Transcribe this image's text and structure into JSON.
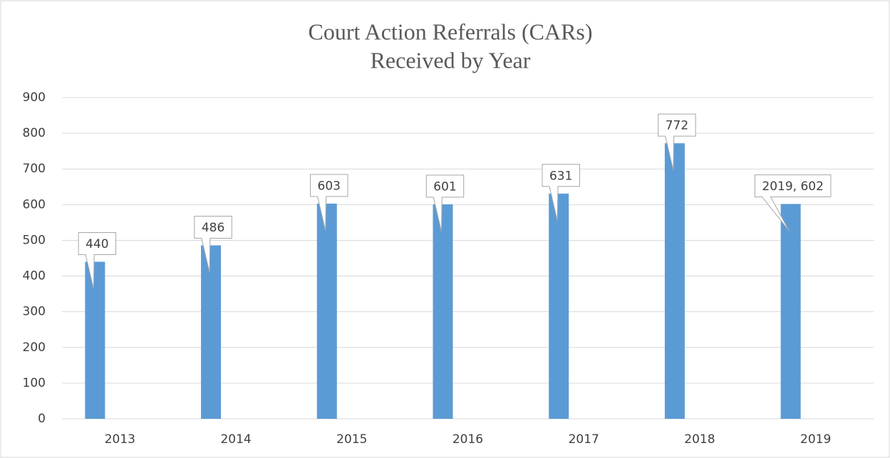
{
  "chart_data": {
    "type": "bar",
    "title": [
      "Court Action Referrals (CARs)",
      "Received by Year"
    ],
    "categories": [
      "2013",
      "2014",
      "2015",
      "2016",
      "2017",
      "2018",
      "2019"
    ],
    "values": [
      440,
      486,
      603,
      601,
      631,
      772,
      602
    ],
    "value_labels": [
      "440",
      "486",
      "603",
      "601",
      "631",
      "772",
      "2019, 602"
    ],
    "color": "#5b9bd5",
    "ylim": [
      0,
      900
    ],
    "yticks": [
      0,
      100,
      200,
      300,
      400,
      500,
      600,
      700,
      800,
      900
    ],
    "grid": true
  }
}
